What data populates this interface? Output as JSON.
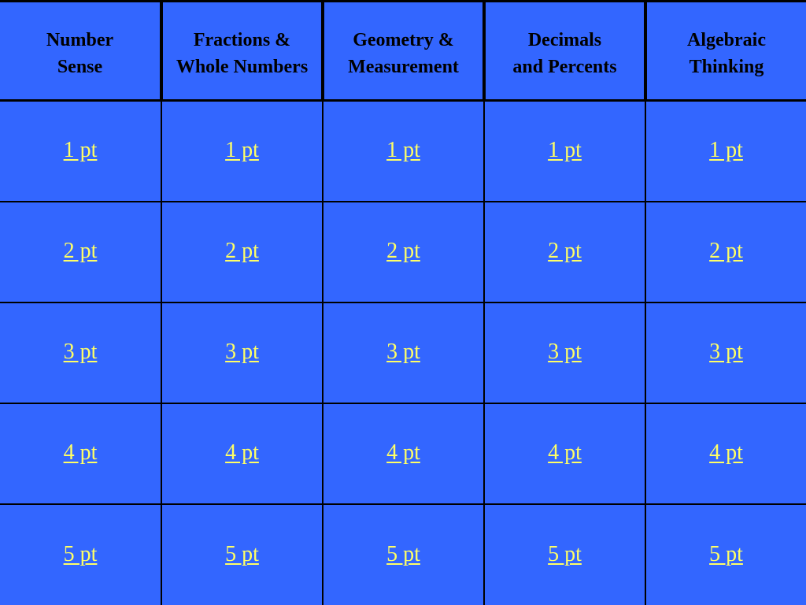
{
  "board": {
    "categories": [
      "Number\nSense",
      "Fractions &\nWhole Numbers",
      "Geometry &\nMeasurement",
      "Decimals\nand Percents",
      "Algebraic\nThinking"
    ],
    "point_labels": [
      "1 pt",
      "2 pt",
      "3 pt",
      "4 pt",
      "5 pt"
    ]
  },
  "colors": {
    "background": "#3366ff",
    "grid_lines": "#000000",
    "header_text": "#000000",
    "link_text": "#ffff66"
  }
}
